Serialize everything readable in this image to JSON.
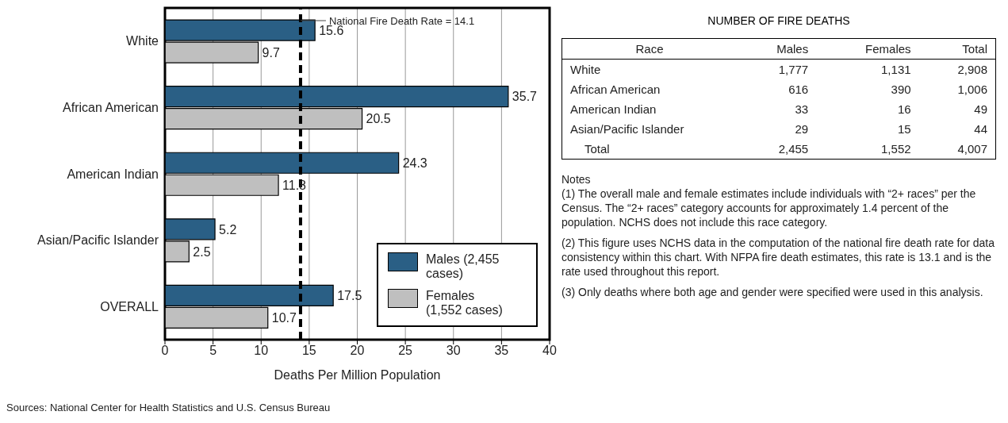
{
  "chart_data": [
    {
      "type": "bar",
      "orientation": "horizontal",
      "categories": [
        "White",
        "African American",
        "American Indian",
        "Asian/Pacific Islander",
        "OVERALL"
      ],
      "series": [
        {
          "name": "Males (2,455 cases)",
          "color": "#2a5f85",
          "values": [
            15.6,
            35.7,
            24.3,
            5.2,
            17.5
          ]
        },
        {
          "name": "Females (1,552 cases)",
          "color": "#bfbfbf",
          "values": [
            9.7,
            20.5,
            11.8,
            2.5,
            10.7
          ]
        }
      ],
      "xlabel": "Deaths Per Million Population",
      "xlim": [
        0,
        40
      ],
      "xticks": [
        0,
        5,
        10,
        15,
        20,
        25,
        30,
        35,
        40
      ],
      "grid": "x",
      "legend": "bottom right",
      "data_labels": true,
      "ref_lines": [
        {
          "axis": "x",
          "value": 14.1,
          "label": "National Fire Death Rate = 14.1",
          "line_style": "dashed",
          "color": "#000000"
        }
      ],
      "annotations": [
        "Sources: National Center for Health Statistics and U.S. Census Bureau"
      ]
    },
    {
      "type": "other",
      "title": "NUMBER OF FIRE DEATHS",
      "ylabel": "Race",
      "categories": [
        "White",
        "African American",
        "American Indian",
        "Asian/Pacific Islander",
        "Total"
      ],
      "series": [
        {
          "name": "Males",
          "values": [
            1777,
            616,
            33,
            29,
            2455
          ],
          "value_labels": [
            "1,777",
            "616",
            "33",
            "29",
            "2,455"
          ]
        },
        {
          "name": "Females",
          "values": [
            1131,
            390,
            16,
            15,
            1552
          ],
          "value_labels": [
            "1,131",
            "390",
            "16",
            "15",
            "1,552"
          ]
        },
        {
          "name": "Total",
          "values": [
            2908,
            1006,
            49,
            44,
            4007
          ],
          "value_labels": [
            "2,908",
            "1,006",
            "49",
            "44",
            "4,007"
          ]
        }
      ],
      "annotations": [
        "Notes",
        "(1) The overall male and female estimates include individuals with “2+ races” per the Census. The “2+ races” category accounts for approximately 1.4 percent of the population. NCHS does not include this race category.",
        "(2) This figure uses NCHS data in the computation of the national fire death rate for data consistency within this chart. With NFPA fire death estimates, this rate is 13.1 and is the rate used throughout this report.",
        "(3) Only deaths where both age and gender were specified were used in this analysis."
      ]
    }
  ]
}
